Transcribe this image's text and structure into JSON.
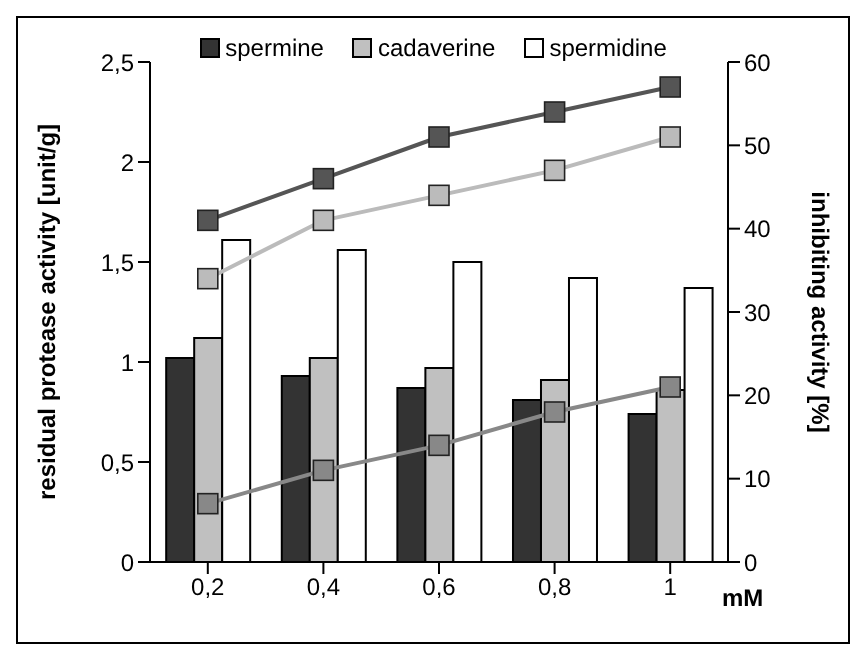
{
  "chart_data": {
    "type": "bar",
    "categories": [
      "0,2",
      "0,4",
      "0,6",
      "0,8",
      "1"
    ],
    "xlabel": "mM",
    "ylabel": "residual protease activity [unit/g]",
    "y2label": "inhibiting activity [%]",
    "series": [
      {
        "name": "spermine",
        "color": "#333333",
        "values": [
          1.02,
          0.93,
          0.87,
          0.81,
          0.74
        ]
      },
      {
        "name": "cadaverine",
        "color": "#c0c0c0",
        "values": [
          1.12,
          1.02,
          0.97,
          0.91,
          0.86
        ]
      },
      {
        "name": "spermidine",
        "color": "#ffffff",
        "values": [
          1.61,
          1.56,
          1.5,
          1.42,
          1.37
        ]
      },
      {
        "type": "line",
        "axis": "y2",
        "color": "#555555",
        "values": [
          41,
          46,
          51,
          54,
          57
        ]
      },
      {
        "type": "line",
        "axis": "y2",
        "color": "#888888",
        "values": [
          7,
          11,
          14,
          18,
          21
        ]
      },
      {
        "type": "line",
        "axis": "y2",
        "color": "#bbbbbb",
        "values": [
          34,
          41,
          44,
          47,
          51
        ]
      }
    ],
    "ylim": [
      0,
      2.5
    ],
    "yticks": [
      0,
      {
        "value": 0.5,
        "label": "0,5"
      },
      1,
      {
        "value": 1.5,
        "label": "1,5"
      },
      2,
      {
        "value": 2.5,
        "label": "2,5"
      }
    ],
    "y2lim": [
      0,
      60
    ],
    "y2ticks": [
      0,
      10,
      20,
      30,
      40,
      50,
      60
    ],
    "grid": false,
    "legend": "top",
    "marker": "square"
  }
}
